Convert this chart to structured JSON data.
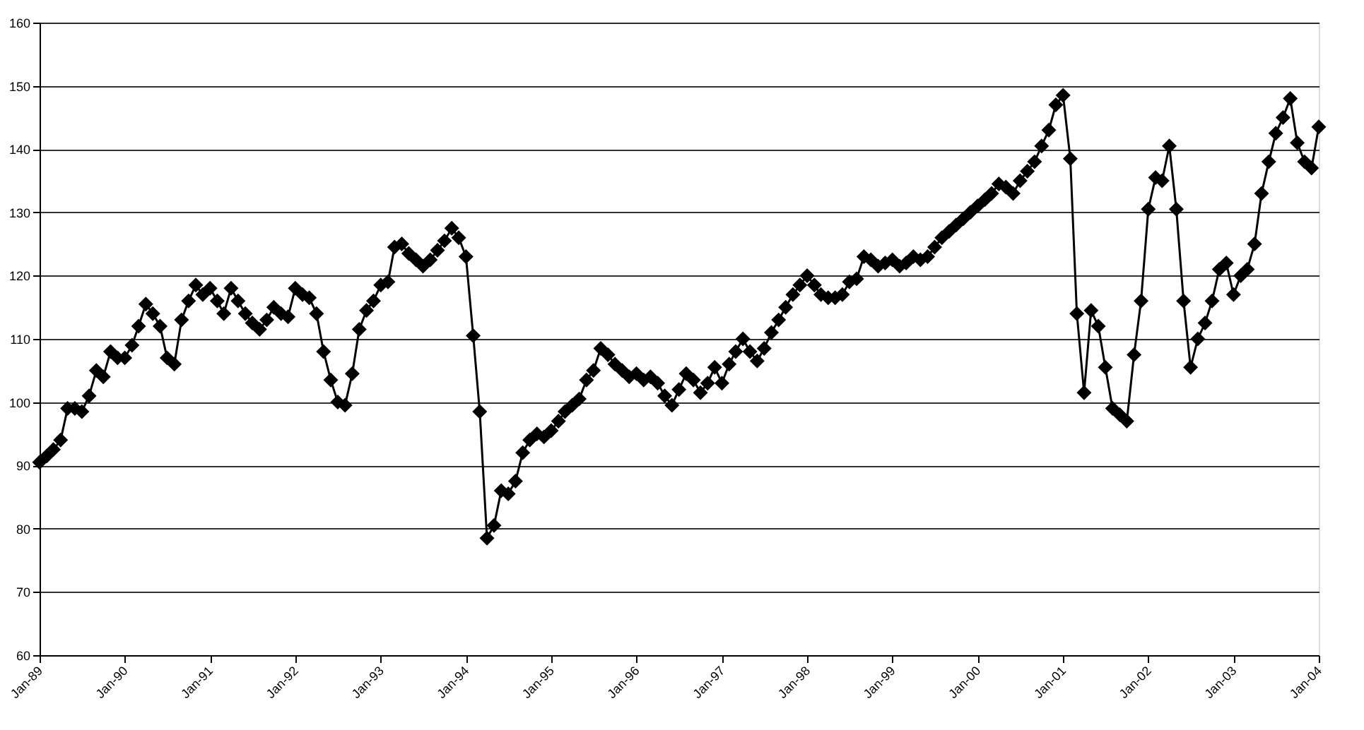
{
  "chart_data": {
    "type": "line",
    "x": [
      "1989-01",
      "1989-02",
      "1989-03",
      "1989-04",
      "1989-05",
      "1989-06",
      "1989-07",
      "1989-08",
      "1989-09",
      "1989-10",
      "1989-11",
      "1989-12",
      "1990-01",
      "1990-02",
      "1990-03",
      "1990-04",
      "1990-05",
      "1990-06",
      "1990-07",
      "1990-08",
      "1990-09",
      "1990-10",
      "1990-11",
      "1990-12",
      "1991-01",
      "1991-02",
      "1991-03",
      "1991-04",
      "1991-05",
      "1991-06",
      "1991-07",
      "1991-08",
      "1991-09",
      "1991-10",
      "1991-11",
      "1991-12",
      "1992-01",
      "1992-02",
      "1992-03",
      "1992-04",
      "1992-05",
      "1992-06",
      "1992-07",
      "1992-08",
      "1992-09",
      "1992-10",
      "1992-11",
      "1992-12",
      "1993-01",
      "1993-02",
      "1993-03",
      "1993-04",
      "1993-05",
      "1993-06",
      "1993-07",
      "1993-08",
      "1993-09",
      "1993-10",
      "1993-11",
      "1993-12",
      "1994-01",
      "1994-02",
      "1994-03",
      "1994-04",
      "1994-05",
      "1994-06",
      "1994-07",
      "1994-08",
      "1994-09",
      "1994-10",
      "1994-11",
      "1994-12",
      "1995-01",
      "1995-02",
      "1995-03",
      "1995-04",
      "1995-05",
      "1995-06",
      "1995-07",
      "1995-08",
      "1995-09",
      "1995-10",
      "1995-11",
      "1995-12",
      "1996-01",
      "1996-02",
      "1996-03",
      "1996-04",
      "1996-05",
      "1996-06",
      "1996-07",
      "1996-08",
      "1996-09",
      "1996-10",
      "1996-11",
      "1996-12",
      "1997-01",
      "1997-02",
      "1997-03",
      "1997-04",
      "1997-05",
      "1997-06",
      "1997-07",
      "1997-08",
      "1997-09",
      "1997-10",
      "1997-11",
      "1997-12",
      "1998-01",
      "1998-02",
      "1998-03",
      "1998-04",
      "1998-05",
      "1998-06",
      "1998-07",
      "1998-08",
      "1998-09",
      "1998-10",
      "1998-11",
      "1998-12",
      "1999-01",
      "1999-02",
      "1999-03",
      "1999-04",
      "1999-05",
      "1999-06",
      "1999-07",
      "1999-08",
      "1999-09",
      "1999-10",
      "1999-11",
      "1999-12",
      "2000-01",
      "2000-02",
      "2000-03",
      "2000-04",
      "2000-05",
      "2000-06",
      "2000-07",
      "2000-08",
      "2000-09",
      "2000-10",
      "2000-11",
      "2000-12",
      "2001-01",
      "2001-02",
      "2001-03",
      "2001-04",
      "2001-05",
      "2001-06",
      "2001-07",
      "2001-08",
      "2001-09",
      "2001-10",
      "2001-11",
      "2001-12",
      "2002-01",
      "2002-02",
      "2002-03",
      "2002-04",
      "2002-05",
      "2002-06",
      "2002-07",
      "2002-08",
      "2002-09",
      "2002-10",
      "2002-11",
      "2002-12",
      "2003-01",
      "2003-02",
      "2003-03",
      "2003-04",
      "2003-05",
      "2003-06",
      "2003-07",
      "2003-08",
      "2003-09",
      "2003-10",
      "2003-11",
      "2003-12",
      "2004-01"
    ],
    "series": [
      {
        "color": "#000000",
        "values": [
          90.5,
          91.5,
          92.5,
          94,
          99,
          99,
          98.5,
          101,
          105,
          104,
          108,
          107,
          107,
          109,
          112,
          115.5,
          114,
          112,
          107,
          106,
          113,
          116,
          118.5,
          117,
          118,
          116,
          114,
          118,
          116,
          114,
          112.5,
          111.5,
          113,
          115,
          114,
          113.5,
          118,
          117,
          116.5,
          114,
          108,
          103.5,
          100,
          99.5,
          104.5,
          111.5,
          114.5,
          116,
          118.5,
          119,
          124.5,
          125,
          123.5,
          122.5,
          121.5,
          122.5,
          124,
          125.5,
          127.5,
          126,
          123,
          110.5,
          98.5,
          78.5,
          80.5,
          86,
          85.5,
          87.5,
          92,
          94,
          95,
          94.5,
          95.5,
          97,
          98.5,
          99.5,
          100.5,
          103.5,
          105,
          108.5,
          107.5,
          106,
          105,
          104,
          104.5,
          103.5,
          104,
          103,
          101,
          99.5,
          102,
          104.5,
          103.5,
          101.5,
          103,
          105.5,
          103,
          106,
          108,
          110,
          108,
          106.5,
          108.5,
          111,
          113,
          115,
          117,
          118.5,
          120,
          118.5,
          117,
          116.5,
          116.5,
          117,
          119,
          119.5,
          123,
          122.5,
          121.5,
          122,
          122.5,
          121.5,
          122,
          123,
          122.5,
          123,
          124.5,
          126,
          127,
          128,
          129,
          130,
          131,
          132,
          133,
          134.5,
          134,
          133,
          135,
          136.5,
          138,
          140.5,
          143,
          147,
          148.5,
          138.5,
          114,
          101.5,
          114.5,
          112,
          105.5,
          99,
          98,
          97,
          107.5,
          116,
          130.5,
          135.5,
          135,
          140.5,
          130.5,
          116,
          105.5,
          110,
          112.5,
          116,
          121,
          122,
          117,
          120,
          121,
          125,
          133,
          138,
          142.5,
          145,
          148,
          141,
          138,
          137,
          143.5
        ]
      }
    ],
    "xlim": [
      "1989-01",
      "2004-01"
    ],
    "xticks": [
      {
        "value": "1989-01",
        "label": "Jan-89"
      },
      {
        "value": "1990-01",
        "label": "Jan-90"
      },
      {
        "value": "1991-01",
        "label": "Jan-91"
      },
      {
        "value": "1992-01",
        "label": "Jan-92"
      },
      {
        "value": "1993-01",
        "label": "Jan-93"
      },
      {
        "value": "1994-01",
        "label": "Jan-94"
      },
      {
        "value": "1995-01",
        "label": "Jan-95"
      },
      {
        "value": "1996-01",
        "label": "Jan-96"
      },
      {
        "value": "1997-01",
        "label": "Jan-97"
      },
      {
        "value": "1998-01",
        "label": "Jan-98"
      },
      {
        "value": "1999-01",
        "label": "Jan-99"
      },
      {
        "value": "2000-01",
        "label": "Jan-00"
      },
      {
        "value": "2001-01",
        "label": "Jan-01"
      },
      {
        "value": "2002-01",
        "label": "Jan-02"
      },
      {
        "value": "2003-01",
        "label": "Jan-03"
      },
      {
        "value": "2004-01",
        "label": "Jan-04"
      }
    ],
    "ylim": [
      60,
      160
    ],
    "yticks": [
      60,
      70,
      80,
      90,
      100,
      110,
      120,
      130,
      140,
      150,
      160
    ],
    "grid": "y",
    "marker": "diamond",
    "line_style": "solid"
  }
}
